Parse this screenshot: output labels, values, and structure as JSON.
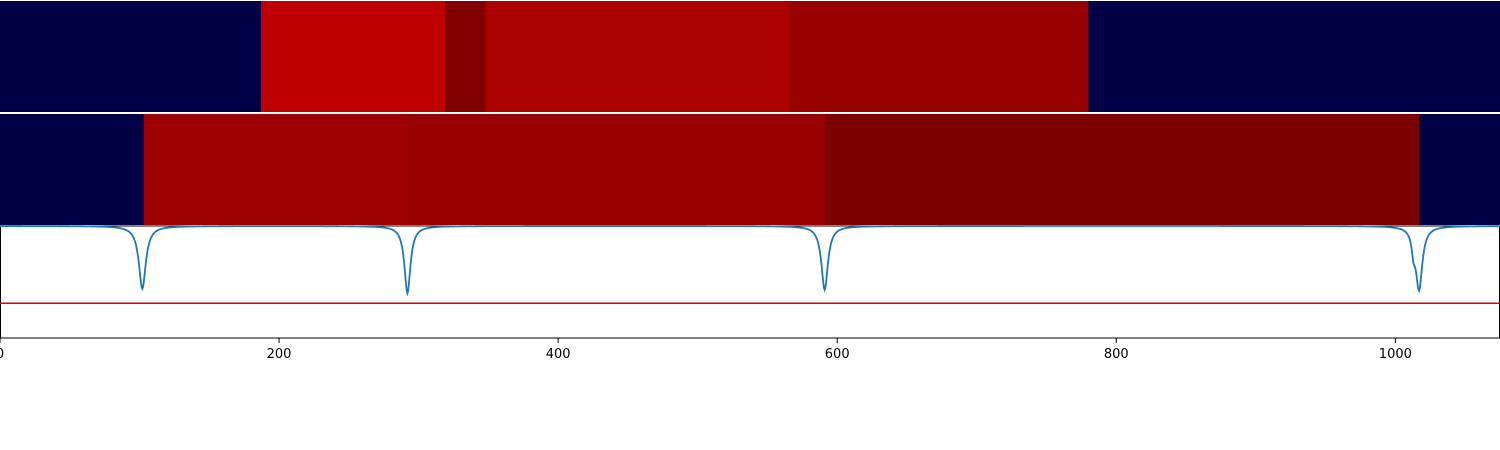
{
  "chart_data": {
    "type": "heatmap",
    "title": "",
    "xlabel": "",
    "ylabel": "",
    "xlim": [
      0,
      1075
    ],
    "grid": false,
    "xticks": [
      0,
      200,
      400,
      600,
      800,
      1000
    ],
    "xtick_labels": [
      "0",
      "200",
      "400",
      "600",
      "800",
      "1000"
    ],
    "colors": {
      "background_segment": "#000047",
      "line_series": "#1f77b4",
      "threshold_line": "#e00000"
    },
    "rows": [
      {
        "segments": [
          {
            "start": 0,
            "end": 187,
            "color": "#000047"
          },
          {
            "start": 187,
            "end": 319,
            "color": "#bf0000"
          },
          {
            "start": 319,
            "end": 348,
            "color": "#800000"
          },
          {
            "start": 348,
            "end": 566,
            "color": "#ad0000"
          },
          {
            "start": 566,
            "end": 780,
            "color": "#990000"
          },
          {
            "start": 780,
            "end": 1075,
            "color": "#000047"
          }
        ]
      },
      {
        "segments": [
          {
            "start": 0,
            "end": 103,
            "color": "#000047"
          },
          {
            "start": 103,
            "end": 292,
            "color": "#9c0000"
          },
          {
            "start": 292,
            "end": 591,
            "color": "#990000"
          },
          {
            "start": 591,
            "end": 1017,
            "color": "#7d0000"
          },
          {
            "start": 1017,
            "end": 1075,
            "color": "#000047"
          }
        ]
      }
    ],
    "lower_panel": {
      "ylim": [
        0,
        1
      ],
      "threshold": 0.31,
      "baseline": 1.0,
      "dips": [
        {
          "center": 102,
          "depth": 0.56,
          "width": 3.0
        },
        {
          "center": 292,
          "depth": 0.6,
          "width": 2.6
        },
        {
          "center": 591,
          "depth": 0.57,
          "width": 2.8
        },
        {
          "center": 1013,
          "depth": 0.15,
          "width": 1.5
        },
        {
          "center": 1017,
          "depth": 0.56,
          "width": 2.8
        }
      ]
    }
  }
}
